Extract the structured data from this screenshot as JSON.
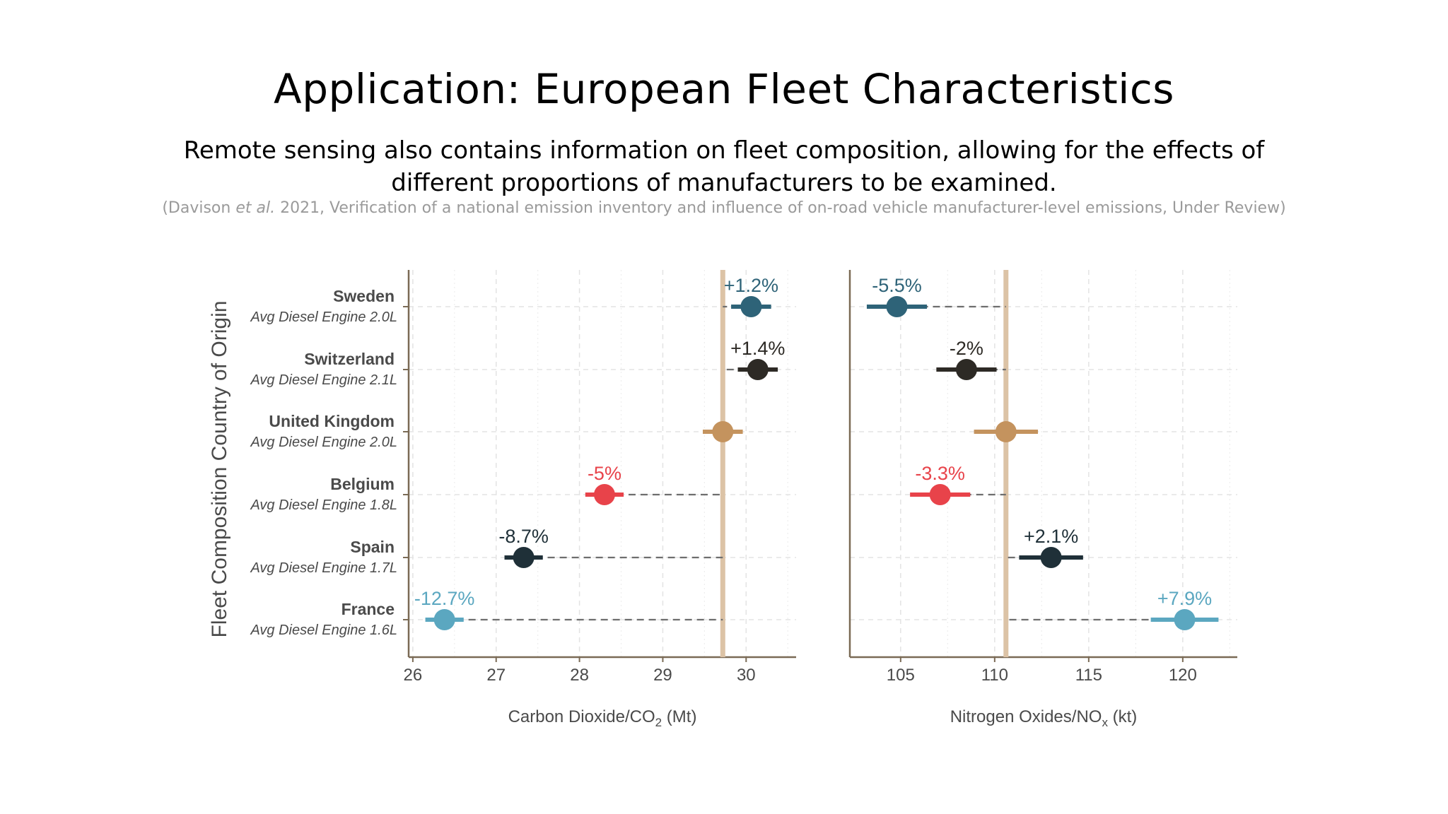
{
  "slide": {
    "title": "Application: European Fleet Characteristics",
    "subtitle": "Remote sensing also contains information on fleet composition, allowing for the effects of different proportions of manufacturers to be examined.",
    "citation_prefix": "(Davison ",
    "citation_etal": "et al.",
    "citation_suffix": " 2021, Verification of a national emission inventory and influence of on-road vehicle manufacturer-level emissions, Under Review)"
  },
  "chart_data": {
    "type": "scatter",
    "ylabel": "Fleet Composition Country of Origin",
    "countries": [
      {
        "name": "Sweden",
        "engine": "Avg Diesel  Engine 2.0L",
        "color": "#2e6378"
      },
      {
        "name": "Switzerland",
        "engine": "Avg Diesel  Engine 2.1L",
        "color": "#2d2a25"
      },
      {
        "name": "United Kingdom",
        "engine": "Avg Diesel  Engine 2.0L",
        "color": "#c4935e"
      },
      {
        "name": "Belgium",
        "engine": "Avg Diesel  Engine 1.8L",
        "color": "#e8434a"
      },
      {
        "name": "Spain",
        "engine": "Avg Diesel  Engine 1.7L",
        "color": "#1f3038"
      },
      {
        "name": "France",
        "engine": "Avg Diesel  Engine 1.6L",
        "color": "#5ba7c0"
      }
    ],
    "panels": [
      {
        "xlabel_main": "Carbon Dioxide",
        "xlabel_sep": "/",
        "xlabel_species": "CO",
        "xlabel_sub": "2",
        "xlabel_unit": " (Mt)",
        "xlim": [
          25.95,
          30.6
        ],
        "ticks": [
          26,
          27,
          28,
          29,
          30
        ],
        "reference": 29.72,
        "points": [
          {
            "country": "Sweden",
            "value": 30.06,
            "low": 29.82,
            "high": 30.3,
            "label": "+1.2%"
          },
          {
            "country": "Switzerland",
            "value": 30.14,
            "low": 29.9,
            "high": 30.38,
            "label": "+1.4%"
          },
          {
            "country": "United Kingdom",
            "value": 29.72,
            "low": 29.48,
            "high": 29.96,
            "label": ""
          },
          {
            "country": "Belgium",
            "value": 28.3,
            "low": 28.07,
            "high": 28.53,
            "label": "-5%"
          },
          {
            "country": "Spain",
            "value": 27.33,
            "low": 27.1,
            "high": 27.56,
            "label": "-8.7%"
          },
          {
            "country": "France",
            "value": 26.38,
            "low": 26.15,
            "high": 26.61,
            "label": "-12.7%"
          }
        ]
      },
      {
        "xlabel_main": "Nitrogen Oxides",
        "xlabel_sep": "/",
        "xlabel_species": "NO",
        "xlabel_sub": "x",
        "xlabel_unit": " (kt)",
        "xlim": [
          102.3,
          122.9
        ],
        "ticks": [
          105,
          110,
          115,
          120
        ],
        "reference": 110.6,
        "points": [
          {
            "country": "Sweden",
            "value": 104.8,
            "low": 103.2,
            "high": 106.4,
            "label": "-5.5%"
          },
          {
            "country": "Switzerland",
            "value": 108.5,
            "low": 106.9,
            "high": 110.1,
            "label": "-2%"
          },
          {
            "country": "United Kingdom",
            "value": 110.6,
            "low": 108.9,
            "high": 112.3,
            "label": ""
          },
          {
            "country": "Belgium",
            "value": 107.1,
            "low": 105.5,
            "high": 108.7,
            "label": "-3.3%"
          },
          {
            "country": "Spain",
            "value": 113.0,
            "low": 111.3,
            "high": 114.7,
            "label": "+2.1%"
          },
          {
            "country": "France",
            "value": 120.1,
            "low": 118.3,
            "high": 121.9,
            "label": "+7.9%"
          }
        ]
      }
    ],
    "reference_line_color": "#dcc3a6",
    "grid": true
  }
}
